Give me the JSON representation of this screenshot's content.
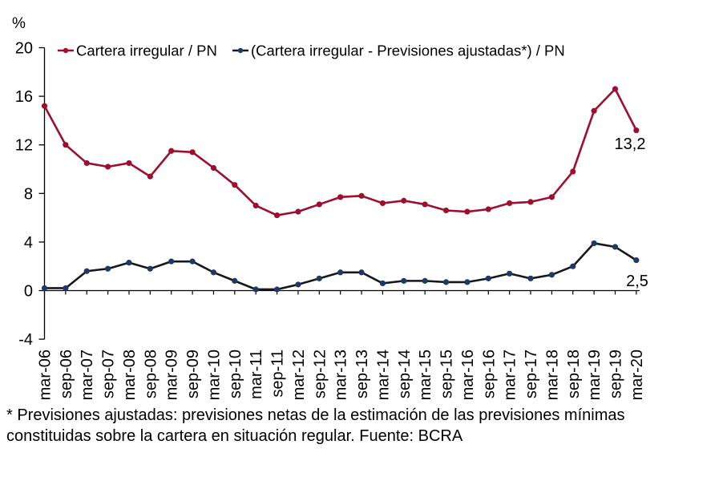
{
  "chart_data": {
    "type": "line",
    "ylabel_unit": "%",
    "grid": false,
    "legend_position": "top-inside",
    "ylim": [
      -4,
      20
    ],
    "yticks": [
      20,
      16,
      12,
      8,
      4,
      0,
      -4
    ],
    "categories": [
      "mar-06",
      "sep-06",
      "mar-07",
      "sep-07",
      "mar-08",
      "sep-08",
      "mar-09",
      "sep-09",
      "mar-10",
      "sep-10",
      "mar-11",
      "sep-11",
      "mar-12",
      "sep-12",
      "mar-13",
      "sep-13",
      "mar-14",
      "sep-14",
      "mar-15",
      "sep-15",
      "mar-16",
      "sep-16",
      "mar-17",
      "sep-17",
      "mar-18",
      "sep-18",
      "mar-19",
      "sep-19",
      "mar-20"
    ],
    "series": [
      {
        "name": "Cartera irregular / PN",
        "line_color": "#9E0E2E",
        "marker_color": "#9E0E2E",
        "end_label": "13,2",
        "values": [
          15.2,
          12.0,
          10.5,
          10.2,
          10.5,
          9.4,
          11.5,
          11.4,
          10.1,
          8.7,
          7.0,
          6.2,
          6.5,
          7.1,
          7.7,
          7.8,
          7.2,
          7.4,
          7.1,
          6.6,
          6.5,
          6.7,
          7.2,
          7.3,
          7.7,
          9.8,
          14.8,
          16.6,
          13.2
        ]
      },
      {
        "name": "(Cartera irregular - Previsiones ajustadas*) / PN",
        "line_color": "#17181D",
        "marker_color": "#1F3864",
        "end_label": "2,5",
        "values": [
          0.2,
          0.2,
          1.6,
          1.8,
          2.3,
          1.8,
          2.4,
          2.4,
          1.5,
          0.8,
          0.1,
          0.1,
          0.5,
          1.0,
          1.5,
          1.5,
          0.6,
          0.8,
          0.8,
          0.7,
          0.7,
          1.0,
          1.4,
          1.0,
          1.3,
          2.0,
          3.9,
          3.6,
          2.5
        ]
      }
    ]
  },
  "footnote": {
    "line1": "* Previsiones ajustadas: previsiones netas de la estimación de las previsiones mínimas",
    "line2": "constituidas sobre la cartera en situación regular. Fuente: BCRA"
  }
}
